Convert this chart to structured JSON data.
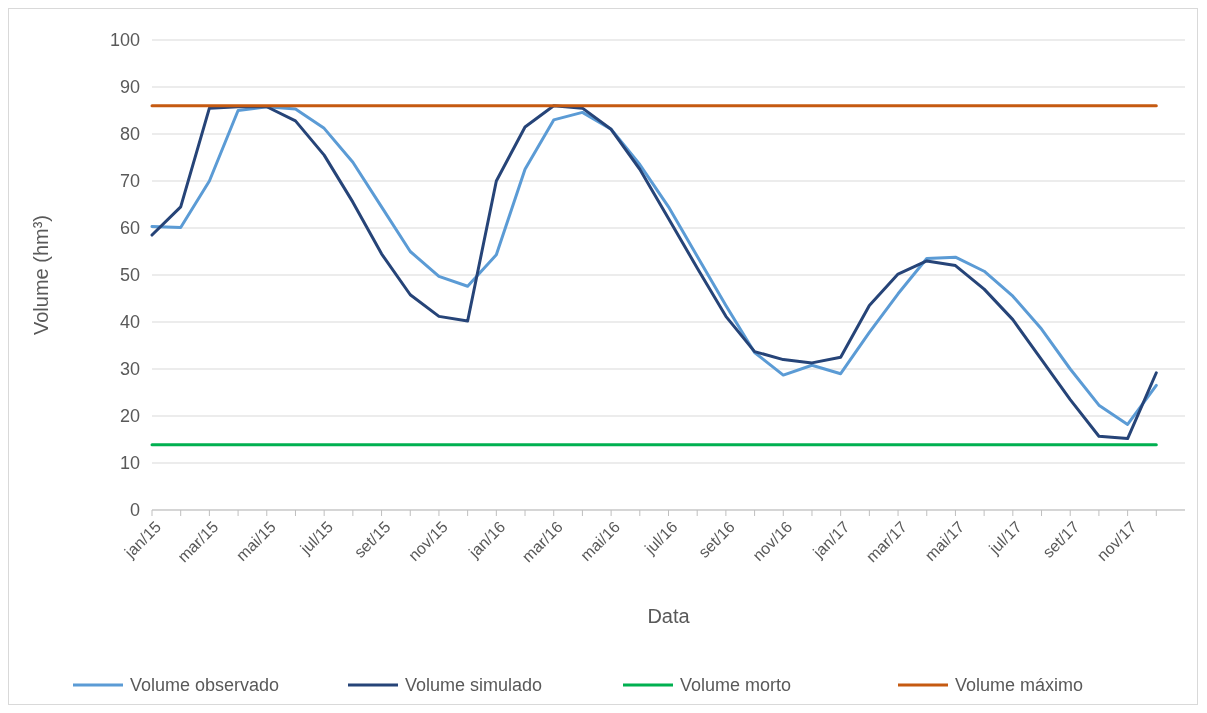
{
  "chart_data": {
    "type": "line",
    "xlabel": "Data",
    "ylabel": "Volume (hm³)",
    "categories": [
      "jan/15",
      null,
      "mar/15",
      null,
      "mai/15",
      null,
      "jul/15",
      null,
      "set/15",
      null,
      "nov/15",
      null,
      "jan/16",
      null,
      "mar/16",
      null,
      "mai/16",
      null,
      "jul/16",
      null,
      "set/16",
      null,
      "nov/16",
      null,
      "jan/17",
      null,
      "mar/17",
      null,
      "mai/17",
      null,
      "jul/17",
      null,
      "set/17",
      null,
      "nov/17",
      null
    ],
    "series": [
      {
        "name": "Volume observado",
        "color": "#5b9bd5",
        "values": [
          60.3,
          60.1,
          70,
          85,
          85.8,
          85.3,
          81.2,
          74,
          64.5,
          55,
          49.7,
          47.6,
          54.3,
          72.5,
          83,
          84.6,
          81,
          73.5,
          64.5,
          54,
          43.5,
          33.5,
          28.7,
          30.8,
          29,
          37.8,
          46,
          53.5,
          53.8,
          50.8,
          45.5,
          38.5,
          30,
          22.3,
          18.2,
          26.5
        ]
      },
      {
        "name": "Volume simulado",
        "color": "#264478",
        "values": [
          58.5,
          64.5,
          85.5,
          85.8,
          85.8,
          82.8,
          75.5,
          65.5,
          54.5,
          45.8,
          41.2,
          40.2,
          70,
          81.5,
          86,
          85.5,
          81,
          72.5,
          62,
          51.5,
          41.2,
          33.7,
          32,
          31.3,
          32.5,
          43.5,
          50.2,
          53,
          52,
          47,
          40.5,
          32,
          23.5,
          15.7,
          15.2,
          29.2
        ]
      },
      {
        "name": "Volume morto",
        "color": "#00b050",
        "values": [
          13.9,
          13.9,
          13.9,
          13.9,
          13.9,
          13.9,
          13.9,
          13.9,
          13.9,
          13.9,
          13.9,
          13.9,
          13.9,
          13.9,
          13.9,
          13.9,
          13.9,
          13.9,
          13.9,
          13.9,
          13.9,
          13.9,
          13.9,
          13.9,
          13.9,
          13.9,
          13.9,
          13.9,
          13.9,
          13.9,
          13.9,
          13.9,
          13.9,
          13.9,
          13.9,
          13.9
        ]
      },
      {
        "name": "Volume máximo",
        "color": "#c55a11",
        "values": [
          86,
          86,
          86,
          86,
          86,
          86,
          86,
          86,
          86,
          86,
          86,
          86,
          86,
          86,
          86,
          86,
          86,
          86,
          86,
          86,
          86,
          86,
          86,
          86,
          86,
          86,
          86,
          86,
          86,
          86,
          86,
          86,
          86,
          86,
          86,
          86
        ]
      }
    ],
    "ylim": [
      0,
      100
    ],
    "yticks": [
      0,
      10,
      20,
      30,
      40,
      50,
      60,
      70,
      80,
      90,
      100
    ],
    "grid": "y",
    "legend": "bottom",
    "marker": "none",
    "line_style": "solid"
  }
}
